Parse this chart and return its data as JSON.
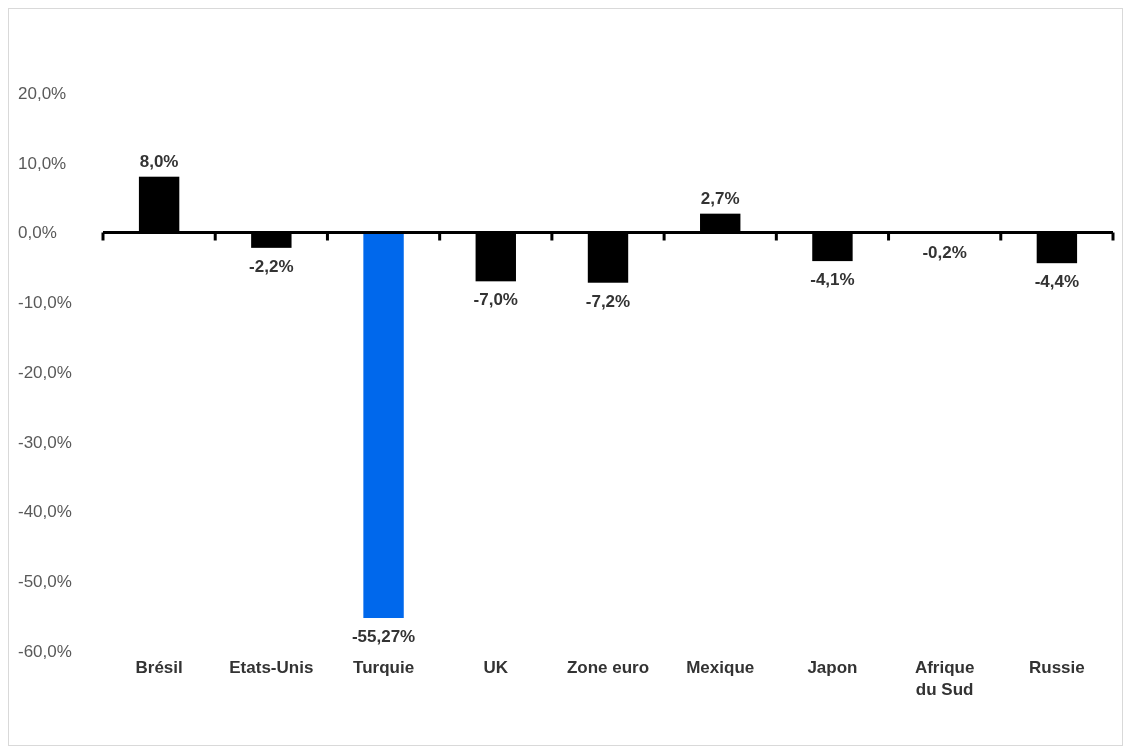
{
  "chart_data": {
    "type": "bar",
    "categories": [
      "Brésil",
      "Etats-Unis",
      "Turquie",
      "UK",
      "Zone euro",
      "Mexique",
      "Japon",
      "Afrique du Sud",
      "Russie"
    ],
    "values": [
      8.0,
      -2.2,
      -55.27,
      -7.0,
      -7.2,
      2.7,
      -4.1,
      -0.2,
      -4.4
    ],
    "colors": [
      "#000000",
      "#000000",
      "#0068ec",
      "#000000",
      "#000000",
      "#000000",
      "#000000",
      "#000000",
      "#000000"
    ],
    "value_labels": [
      "8,0%",
      "-2,2%",
      "-55,27%",
      "-7,0%",
      "-7,2%",
      "2,7%",
      "-4,1%",
      "-0,2%",
      "-4,4%"
    ],
    "ylim": [
      -60,
      20
    ],
    "yticks": [
      {
        "value": -60,
        "label": "-60,0%"
      },
      {
        "value": -50,
        "label": "-50,0%"
      },
      {
        "value": -40,
        "label": "-40,0%"
      },
      {
        "value": -30,
        "label": "-30,0%"
      },
      {
        "value": -20,
        "label": "-20,0%"
      },
      {
        "value": -10,
        "label": "-10,0%"
      },
      {
        "value": 0,
        "label": "0,0%"
      },
      {
        "value": 10,
        "label": "10,0%"
      },
      {
        "value": 20,
        "label": "20,0%"
      }
    ],
    "tick_labels": true
  }
}
